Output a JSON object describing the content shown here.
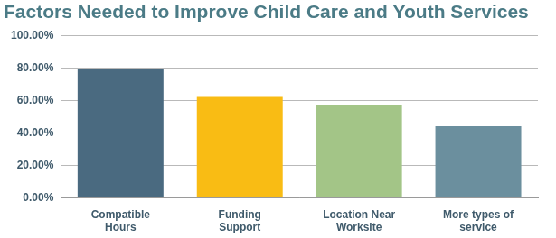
{
  "chart_data": {
    "type": "bar",
    "title": "Factors Needed to Improve Child Care and Youth Services",
    "categories": [
      "Compatible Hours",
      "Funding Support",
      "Location Near Worksite",
      "More types of service"
    ],
    "values": [
      79,
      62,
      57,
      44
    ],
    "colors": [
      "#4a6a80",
      "#f9bc14",
      "#a3c587",
      "#6b8f9e"
    ],
    "ylim": [
      0,
      100
    ],
    "yticks": [
      {
        "value": 0,
        "label": "0.00%"
      },
      {
        "value": 20,
        "label": "20.00%"
      },
      {
        "value": 40,
        "label": "40.00%"
      },
      {
        "value": 60,
        "label": "60.00%"
      },
      {
        "value": 80,
        "label": "80.00%"
      },
      {
        "value": 100,
        "label": "100.00%"
      }
    ],
    "grid": true
  }
}
